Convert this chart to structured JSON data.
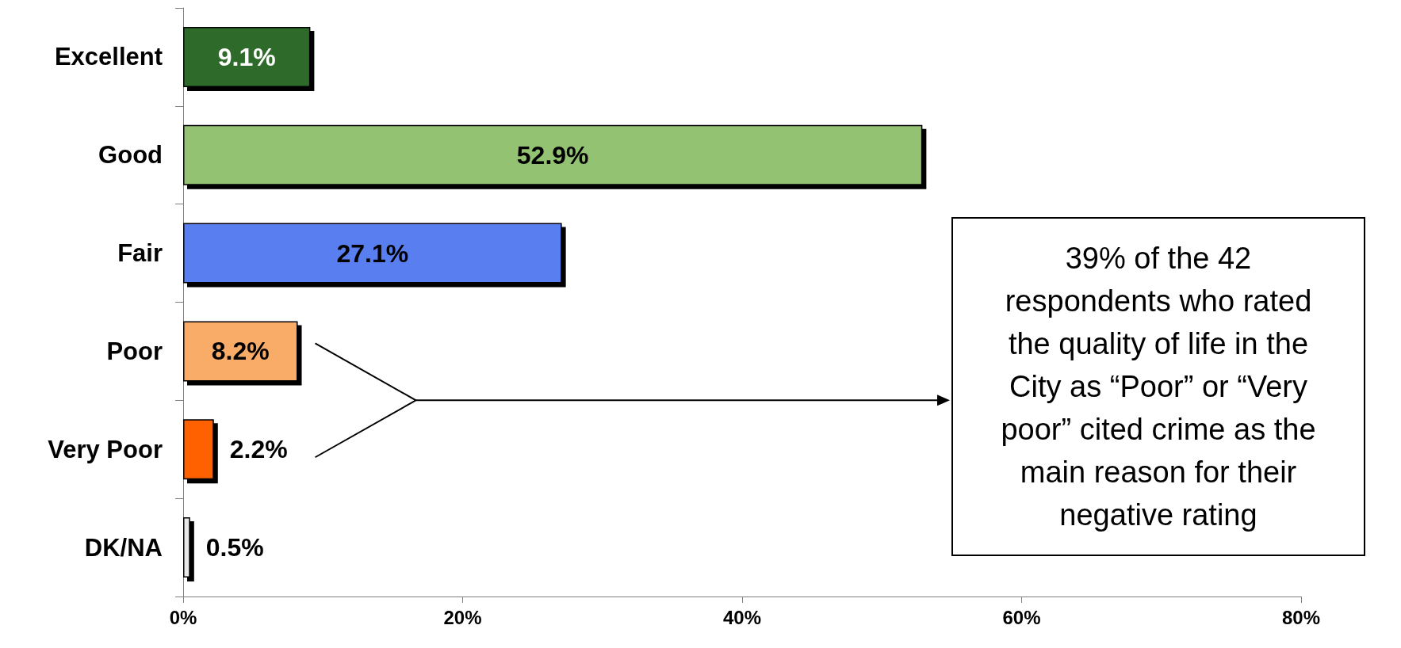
{
  "chart_data": {
    "type": "bar",
    "orientation": "horizontal",
    "categories": [
      "Excellent",
      "Good",
      "Fair",
      "Poor",
      "Very Poor",
      "DK/NA"
    ],
    "values": [
      9.1,
      52.9,
      27.1,
      8.2,
      2.2,
      0.5
    ],
    "colors": [
      "#2f6b2a",
      "#93c273",
      "#587ef0",
      "#f9ac68",
      "#ff6100",
      "#e8e8e8"
    ],
    "value_labels": [
      "9.1%",
      "52.9%",
      "27.1%",
      "8.2%",
      "2.2%",
      "0.5%"
    ],
    "xlim": [
      0,
      80
    ],
    "xticks": [
      {
        "value": 0,
        "label": "0%"
      },
      {
        "value": 20,
        "label": "20%"
      },
      {
        "value": 40,
        "label": "40%"
      },
      {
        "value": 60,
        "label": "60%"
      },
      {
        "value": 80,
        "label": "80%"
      }
    ],
    "grid": false,
    "annotations": [
      "39% of the 42 respondents who rated the quality of life in the City as “Poor” or “Very poor” cited crime as the main reason for their negative rating"
    ]
  }
}
